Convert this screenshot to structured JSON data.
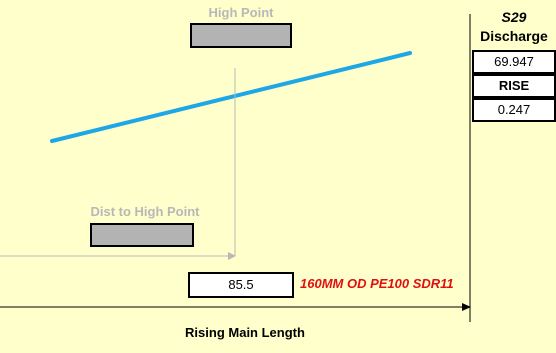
{
  "high_point": {
    "label": "High Point"
  },
  "dist_to_high_point": {
    "label": "Dist to High Point"
  },
  "station": {
    "id": "S29",
    "discharge_label": "Discharge",
    "discharge_value": "69.947",
    "rise_label": "RISE",
    "rise_value": "0.247"
  },
  "rising_main": {
    "length_value": "85.5",
    "pipe_spec": "160MM OD PE100 SDR11",
    "axis_label": "Rising Main Length"
  },
  "colors": {
    "background": "#FFFFCC",
    "pipe_line": "#1EA7E6",
    "pipe_spec_text": "#E01010",
    "grey_label": "#B8B8B8",
    "grey_box": "#B3B3B3"
  }
}
